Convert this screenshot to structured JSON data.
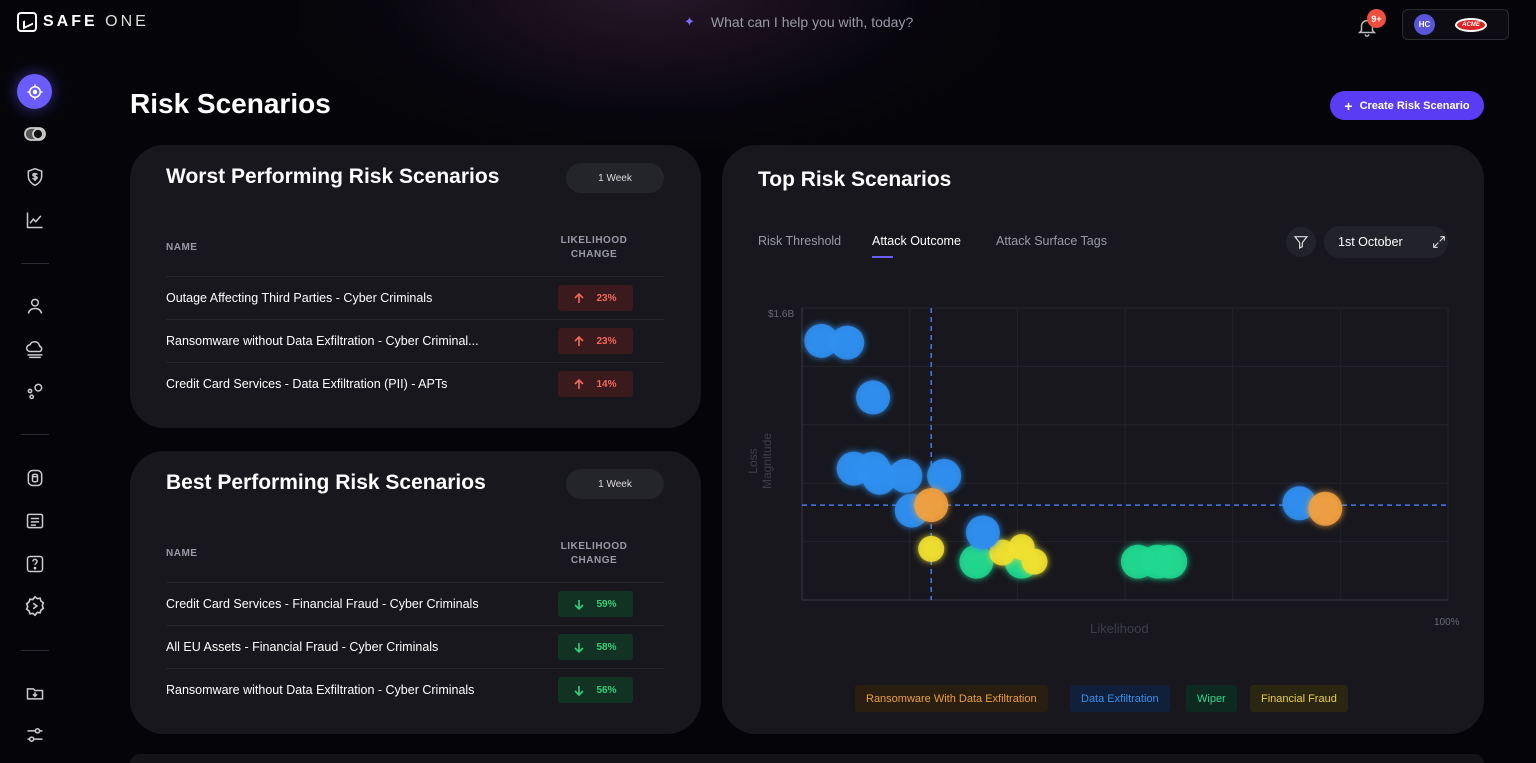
{
  "app": {
    "brand_main": "SAFE",
    "brand_sub": "ONE"
  },
  "topbar": {
    "assistant_prompt": "What can I help you with, today?",
    "notification_count": "9+",
    "user_initials": "HC",
    "org_logo_text": "ACME"
  },
  "sidebar": {
    "items": [
      {
        "icon": "target-icon",
        "active": true
      },
      {
        "icon": "toggle-icon"
      },
      {
        "icon": "shield-dollar-icon"
      },
      {
        "icon": "trend-chart-icon"
      },
      {
        "icon": "user-icon"
      },
      {
        "icon": "cloud-icon"
      },
      {
        "icon": "nodes-icon"
      },
      {
        "icon": "database-icon"
      },
      {
        "icon": "list-icon"
      },
      {
        "icon": "help-icon"
      },
      {
        "icon": "settings-gear-icon"
      },
      {
        "icon": "import-icon"
      },
      {
        "icon": "sliders-icon"
      }
    ]
  },
  "page": {
    "title": "Risk Scenarios",
    "create_button": "Create Risk Scenario"
  },
  "worst": {
    "title": "Worst Performing Risk Scenarios",
    "period": "1 Week",
    "col_name": "NAME",
    "col_change_1": "LIKELIHOOD",
    "col_change_2": "CHANGE",
    "rows": [
      {
        "name": "Outage Affecting Third Parties - Cyber Criminals",
        "change": "23%",
        "direction": "up"
      },
      {
        "name": "Ransomware without Data Exfiltration - Cyber Criminal...",
        "change": "23%",
        "direction": "up"
      },
      {
        "name": "Credit Card Services - Data Exfiltration (PII) - APTs",
        "change": "14%",
        "direction": "up"
      }
    ]
  },
  "best": {
    "title": "Best Performing Risk Scenarios",
    "period": "1 Week",
    "col_name": "NAME",
    "col_change_1": "LIKELIHOOD",
    "col_change_2": "CHANGE",
    "rows": [
      {
        "name": "Credit Card Services - Financial Fraud - Cyber Criminals",
        "change": "59%",
        "direction": "down"
      },
      {
        "name": "All EU Assets - Financial Fraud - Cyber Criminals",
        "change": "58%",
        "direction": "down"
      },
      {
        "name": "Ransomware without Data Exfiltration - Cyber Criminals",
        "change": "56%",
        "direction": "down"
      }
    ]
  },
  "top": {
    "title": "Top Risk Scenarios",
    "tabs": [
      {
        "label": "Risk Threshold",
        "active": false
      },
      {
        "label": "Attack Outcome",
        "active": true
      },
      {
        "label": "Attack Surface Tags",
        "active": false
      }
    ],
    "date": "1st October"
  },
  "chart_data": {
    "type": "scatter",
    "xlabel": "Likelihood",
    "ylabel": "Loss Magnitude",
    "y_max_label": "$1.6B",
    "x_max_label": "100%",
    "xlim": [
      0,
      100
    ],
    "ylim": [
      0,
      1.6
    ],
    "threshold": {
      "x": 20,
      "y": 0.52
    },
    "grid": true,
    "colors": {
      "Ransomware With Data Exfiltration": "#f0a040",
      "Data Exfiltration": "#2f8ff0",
      "Wiper": "#20d890",
      "Financial Fraud": "#f0e030"
    },
    "series": [
      {
        "name": "Data Exfiltration",
        "points": [
          {
            "x": 3,
            "y": 1.42
          },
          {
            "x": 7,
            "y": 1.41
          },
          {
            "x": 11,
            "y": 1.11
          },
          {
            "x": 8,
            "y": 0.72
          },
          {
            "x": 11,
            "y": 0.72
          },
          {
            "x": 12,
            "y": 0.67
          },
          {
            "x": 16,
            "y": 0.68
          },
          {
            "x": 22,
            "y": 0.68
          },
          {
            "x": 17,
            "y": 0.49
          },
          {
            "x": 28,
            "y": 0.37
          },
          {
            "x": 77,
            "y": 0.53
          }
        ]
      },
      {
        "name": "Ransomware With Data Exfiltration",
        "points": [
          {
            "x": 20,
            "y": 0.52
          },
          {
            "x": 81,
            "y": 0.5
          }
        ]
      },
      {
        "name": "Financial Fraud",
        "points": [
          {
            "x": 20,
            "y": 0.28
          },
          {
            "x": 31,
            "y": 0.26
          },
          {
            "x": 34,
            "y": 0.29
          },
          {
            "x": 36,
            "y": 0.21
          }
        ]
      },
      {
        "name": "Wiper",
        "points": [
          {
            "x": 27,
            "y": 0.21
          },
          {
            "x": 34,
            "y": 0.21
          },
          {
            "x": 52,
            "y": 0.21
          },
          {
            "x": 55,
            "y": 0.21
          },
          {
            "x": 57,
            "y": 0.21
          }
        ]
      }
    ],
    "legend": [
      "Ransomware With Data Exfiltration",
      "Data Exfiltration",
      "Wiper",
      "Financial Fraud"
    ]
  }
}
